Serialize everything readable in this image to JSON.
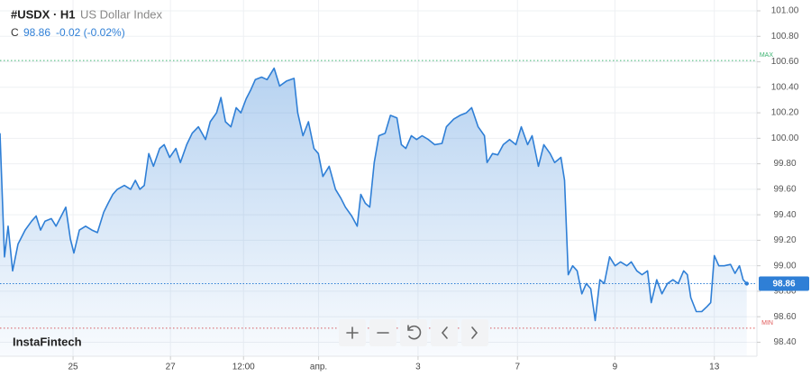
{
  "chart_data": {
    "type": "area",
    "title": "#USDX · H1",
    "subtitle": "US Dollar Index",
    "close_label": "C",
    "last_price": 98.86,
    "change": "-0.02 (-0.02%)",
    "brand": "InstaFintech",
    "color": "#2f7fd6",
    "grid": true,
    "max_line": {
      "label": "MAX",
      "value": 100.61,
      "color": "#3cb371"
    },
    "min_line": {
      "label": "MIN",
      "value": 98.51,
      "color": "#e05a5a"
    },
    "xlim": [
      0,
      373
    ],
    "ylim": [
      98.29,
      101.085
    ],
    "xticks": [
      {
        "value": 36,
        "label": "25"
      },
      {
        "value": 84,
        "label": "27"
      },
      {
        "value": 120,
        "label": "12:00"
      },
      {
        "value": 157,
        "label": "апр."
      },
      {
        "value": 206,
        "label": "3"
      },
      {
        "value": 255,
        "label": "7"
      },
      {
        "value": 303,
        "label": "9"
      },
      {
        "value": 352,
        "label": "13"
      }
    ],
    "yticks": [
      {
        "value": 98.4,
        "label": "98.40"
      },
      {
        "value": 98.6,
        "label": "98.60"
      },
      {
        "value": 98.8,
        "label": "98.80"
      },
      {
        "value": 99.0,
        "label": "99.00"
      },
      {
        "value": 99.2,
        "label": "99.20"
      },
      {
        "value": 99.4,
        "label": "99.40"
      },
      {
        "value": 99.6,
        "label": "99.60"
      },
      {
        "value": 99.8,
        "label": "99.80"
      },
      {
        "value": 100.0,
        "label": "100.00"
      },
      {
        "value": 100.2,
        "label": "100.20"
      },
      {
        "value": 100.4,
        "label": "100.40"
      },
      {
        "value": 100.6,
        "label": "100.60"
      },
      {
        "value": 100.8,
        "label": "100.80"
      },
      {
        "value": 101.0,
        "label": "101.00"
      }
    ],
    "x": [
      0,
      2.2,
      4,
      6.2,
      8.9,
      12.4,
      15.6,
      17.8,
      20,
      22.2,
      25.3,
      27.6,
      30.2,
      32.4,
      34.7,
      36.4,
      39.1,
      42.2,
      45.3,
      48,
      51.1,
      53.3,
      55.6,
      57.8,
      61.3,
      64.4,
      66.7,
      68.9,
      71.1,
      73.3,
      75.6,
      78.7,
      80.9,
      83.6,
      86.7,
      88.9,
      92,
      94.7,
      97.8,
      101.3,
      103.6,
      106.7,
      108.9,
      111.1,
      113.8,
      116.4,
      118.7,
      121.3,
      123.6,
      125.8,
      128.9,
      131.6,
      135.1,
      137.8,
      141.3,
      144.9,
      146.7,
      149.3,
      152,
      154.7,
      156.9,
      159.1,
      162.2,
      165.3,
      168,
      170.2,
      173.3,
      176,
      177.8,
      180,
      182.2,
      184.4,
      186.7,
      189.8,
      192.4,
      195.6,
      197.8,
      200,
      202.7,
      205.3,
      208,
      211.1,
      214.2,
      217.8,
      220,
      223.6,
      226.7,
      229.8,
      232.4,
      235.6,
      238.7,
      240,
      242.7,
      245.3,
      248,
      251.1,
      254.2,
      256.9,
      260,
      262.2,
      265.3,
      268,
      271.1,
      273.3,
      276.4,
      278.2,
      280,
      282.2,
      284.4,
      286.7,
      288.9,
      291.1,
      293.3,
      295.6,
      297.8,
      300.4,
      303.1,
      305.8,
      308.9,
      311.1,
      313.8,
      316.4,
      319.1,
      320.9,
      323.6,
      326.2,
      328.9,
      331.6,
      334.2,
      336.9,
      338.7,
      340.4,
      343.1,
      345.8,
      348.4,
      350.2,
      352,
      354.2,
      356.9,
      360,
      362.2,
      364.4,
      366.2,
      368
    ],
    "values": [
      100.04,
      99.07,
      99.31,
      98.96,
      99.17,
      99.28,
      99.35,
      99.39,
      99.28,
      99.35,
      99.37,
      99.31,
      99.39,
      99.46,
      99.21,
      99.1,
      99.28,
      99.31,
      99.28,
      99.26,
      99.42,
      99.49,
      99.56,
      99.6,
      99.63,
      99.6,
      99.67,
      99.6,
      99.63,
      99.88,
      99.78,
      99.92,
      99.95,
      99.85,
      99.92,
      99.81,
      99.95,
      100.04,
      100.09,
      99.99,
      100.13,
      100.2,
      100.32,
      100.13,
      100.09,
      100.24,
      100.2,
      100.31,
      100.38,
      100.46,
      100.48,
      100.46,
      100.55,
      100.41,
      100.45,
      100.47,
      100.2,
      100.02,
      100.13,
      99.92,
      99.88,
      99.7,
      99.78,
      99.6,
      99.53,
      99.46,
      99.39,
      99.31,
      99.56,
      99.49,
      99.46,
      99.81,
      100.02,
      100.04,
      100.18,
      100.16,
      99.95,
      99.92,
      100.02,
      99.99,
      100.02,
      99.99,
      99.95,
      99.96,
      100.09,
      100.15,
      100.18,
      100.2,
      100.24,
      100.09,
      100.02,
      99.81,
      99.88,
      99.87,
      99.95,
      99.99,
      99.95,
      100.09,
      99.95,
      100.02,
      99.78,
      99.95,
      99.88,
      99.81,
      99.85,
      99.67,
      98.93,
      99.0,
      98.96,
      98.78,
      98.86,
      98.82,
      98.57,
      98.89,
      98.86,
      99.07,
      99.0,
      99.03,
      99.0,
      99.03,
      98.96,
      98.93,
      98.96,
      98.71,
      98.89,
      98.78,
      98.86,
      98.89,
      98.86,
      98.96,
      98.93,
      98.75,
      98.64,
      98.64,
      98.68,
      98.71,
      99.08,
      99.0,
      99.0,
      99.01,
      98.94,
      99.0,
      98.89,
      98.86
    ]
  }
}
